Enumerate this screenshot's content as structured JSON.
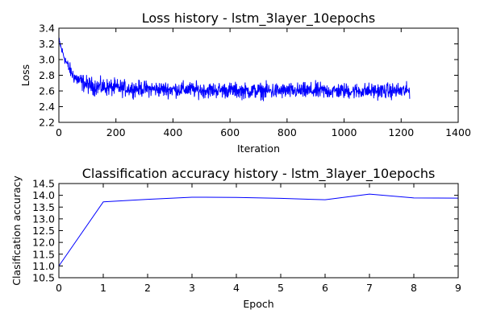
{
  "chart_data": [
    {
      "type": "line",
      "title": "Loss history - lstm_3layer_10epochs",
      "xlabel": "Iteration",
      "ylabel": "Loss",
      "xlim": [
        0,
        1400
      ],
      "ylim": [
        2.2,
        3.4
      ],
      "xticks": [
        0,
        200,
        400,
        600,
        800,
        1000,
        1200,
        1400
      ],
      "xtick_labels": [
        "0",
        "200",
        "400",
        "600",
        "800",
        "1000",
        "1200",
        "1400"
      ],
      "yticks": [
        2.2,
        2.4,
        2.6,
        2.8,
        3.0,
        3.2,
        3.4
      ],
      "ytick_labels": [
        "2.2",
        "2.4",
        "2.6",
        "2.8",
        "3.0",
        "3.2",
        "3.4"
      ],
      "grid": false,
      "color": "#0000ff",
      "series": [
        {
          "x": [
            0,
            10,
            20,
            30,
            40,
            50,
            60,
            80,
            100,
            120,
            150,
            200,
            250,
            300,
            350,
            400,
            450,
            500,
            550,
            600,
            650,
            700,
            740,
            780,
            800,
            850,
            900,
            950,
            1000,
            1050,
            1100,
            1150,
            1200,
            1230
          ],
          "y": [
            3.25,
            3.12,
            3.02,
            2.93,
            2.86,
            2.8,
            2.76,
            2.71,
            2.68,
            2.66,
            2.65,
            2.64,
            2.63,
            2.63,
            2.62,
            2.62,
            2.62,
            2.61,
            2.61,
            2.61,
            2.6,
            2.6,
            2.6,
            2.6,
            2.6,
            2.6,
            2.6,
            2.6,
            2.6,
            2.6,
            2.6,
            2.6,
            2.6,
            2.6
          ],
          "noise_amplitude": [
            0.04,
            0.05,
            0.06,
            0.07,
            0.08,
            0.08,
            0.09,
            0.1,
            0.1,
            0.1,
            0.1,
            0.1,
            0.09,
            0.09,
            0.09,
            0.09,
            0.09,
            0.09,
            0.09,
            0.09,
            0.09,
            0.09,
            0.1,
            0.09,
            0.09,
            0.09,
            0.1,
            0.09,
            0.09,
            0.09,
            0.09,
            0.09,
            0.09,
            0.09
          ]
        }
      ]
    },
    {
      "type": "line",
      "title": "Classification accuracy history - lstm_3layer_10epochs",
      "xlabel": "Epoch",
      "ylabel": "Clasification accuracy",
      "xlim": [
        0,
        9
      ],
      "ylim": [
        10.5,
        14.5
      ],
      "xticks": [
        0,
        1,
        2,
        3,
        4,
        5,
        6,
        7,
        8,
        9
      ],
      "xtick_labels": [
        "0",
        "1",
        "2",
        "3",
        "4",
        "5",
        "6",
        "7",
        "8",
        "9"
      ],
      "yticks": [
        10.5,
        11.0,
        11.5,
        12.0,
        12.5,
        13.0,
        13.5,
        14.0,
        14.5
      ],
      "ytick_labels": [
        "10.5",
        "11.0",
        "11.5",
        "12.0",
        "12.5",
        "13.0",
        "13.5",
        "14.0",
        "14.5"
      ],
      "grid": false,
      "color": "#0000ff",
      "series": [
        {
          "x": [
            0,
            1,
            2,
            3,
            4,
            5,
            6,
            7,
            8,
            9
          ],
          "y": [
            11.0,
            13.72,
            13.83,
            13.92,
            13.91,
            13.87,
            13.81,
            14.05,
            13.89,
            13.88
          ]
        }
      ]
    }
  ]
}
